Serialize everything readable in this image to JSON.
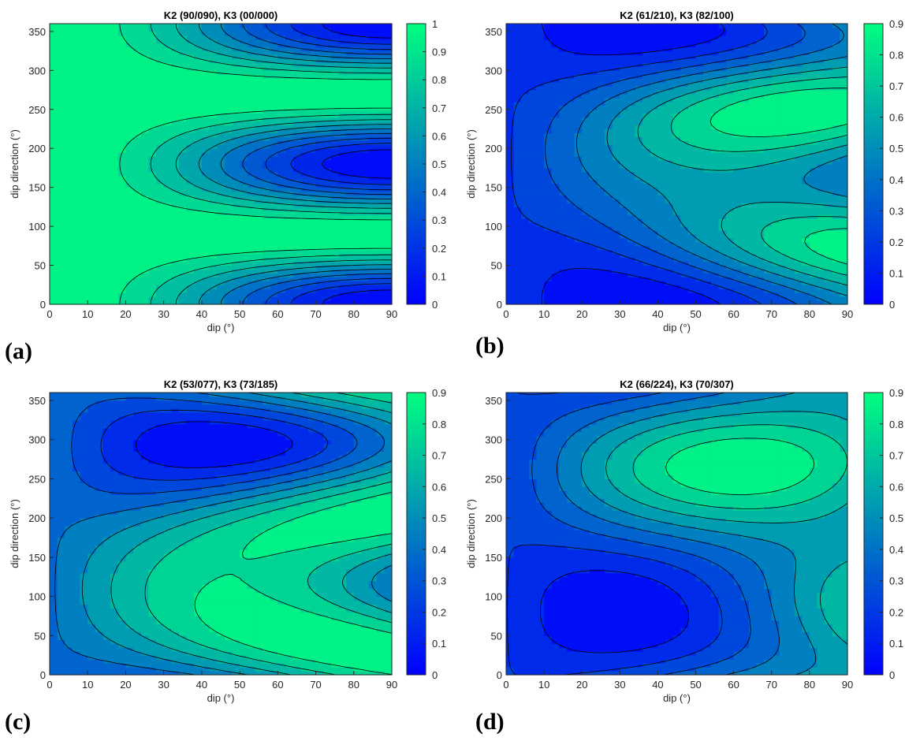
{
  "chart_data": [
    {
      "type": "heatmap",
      "subtype": "filled-contour",
      "panel_label": "(a)",
      "title": "K2 (90/090), K3 (00/000)",
      "xlabel": "dip (°)",
      "ylabel": "dip direction (°)",
      "xlim": [
        0,
        90
      ],
      "ylim": [
        0,
        360
      ],
      "xticks": [
        0,
        10,
        20,
        30,
        40,
        50,
        60,
        70,
        80,
        90
      ],
      "yticks": [
        0,
        50,
        100,
        150,
        200,
        250,
        300,
        350
      ],
      "colorbar": {
        "ticks": [
          0,
          0.1,
          0.2,
          0.3,
          0.4,
          0.5,
          0.6,
          0.7,
          0.8,
          0.9,
          1
        ],
        "lim": [
          0,
          1
        ]
      },
      "k2": {
        "dip": 90,
        "dir": 90
      },
      "k3": {
        "dip": 0,
        "dir": 0
      },
      "levels": [
        0.1,
        0.2,
        0.3,
        0.4,
        0.5,
        0.6,
        0.7,
        0.8,
        0.9
      ],
      "max_location": {
        "dip": 90,
        "dip_direction": 180
      }
    },
    {
      "type": "heatmap",
      "subtype": "filled-contour",
      "panel_label": "(b)",
      "title": "K2 (61/210), K3 (82/100)",
      "xlabel": "dip (°)",
      "ylabel": "dip direction (°)",
      "xlim": [
        0,
        90
      ],
      "ylim": [
        0,
        360
      ],
      "xticks": [
        0,
        10,
        20,
        30,
        40,
        50,
        60,
        70,
        80,
        90
      ],
      "yticks": [
        0,
        50,
        100,
        150,
        200,
        250,
        300,
        350
      ],
      "colorbar": {
        "ticks": [
          0,
          0.1,
          0.2,
          0.3,
          0.4,
          0.5,
          0.6,
          0.7,
          0.8,
          0.9
        ],
        "lim": [
          0,
          0.9
        ]
      },
      "k2": {
        "dip": 61,
        "dir": 210
      },
      "k3": {
        "dip": 82,
        "dir": 100
      },
      "levels": [
        0.1,
        0.2,
        0.3,
        0.4,
        0.5,
        0.6,
        0.7,
        0.8
      ],
      "max_location": {
        "dip": 25,
        "dip_direction": 0
      }
    },
    {
      "type": "heatmap",
      "subtype": "filled-contour",
      "panel_label": "(c)",
      "title": "K2 (53/077), K3 (73/185)",
      "xlabel": "dip (°)",
      "ylabel": "dip direction (°)",
      "xlim": [
        0,
        90
      ],
      "ylim": [
        0,
        360
      ],
      "xticks": [
        0,
        10,
        20,
        30,
        40,
        50,
        60,
        70,
        80,
        90
      ],
      "yticks": [
        0,
        50,
        100,
        150,
        200,
        250,
        300,
        350
      ],
      "colorbar": {
        "ticks": [
          0,
          0.1,
          0.2,
          0.3,
          0.4,
          0.5,
          0.6,
          0.7,
          0.8,
          0.9
        ],
        "lim": [
          0,
          0.9
        ]
      },
      "k2": {
        "dip": 53,
        "dir": 77
      },
      "k3": {
        "dip": 73,
        "dir": 185
      },
      "levels": [
        0.1,
        0.2,
        0.3,
        0.4,
        0.5,
        0.6,
        0.7,
        0.8
      ],
      "max_location": {
        "dip": 35,
        "dip_direction": 295
      }
    },
    {
      "type": "heatmap",
      "subtype": "filled-contour",
      "panel_label": "(d)",
      "title": "K2 (66/224), K3 (70/307)",
      "xlabel": "dip (°)",
      "ylabel": "dip direction (°)",
      "xlim": [
        0,
        90
      ],
      "ylim": [
        0,
        360
      ],
      "xticks": [
        0,
        10,
        20,
        30,
        40,
        50,
        60,
        70,
        80,
        90
      ],
      "yticks": [
        0,
        50,
        100,
        150,
        200,
        250,
        300,
        350
      ],
      "colorbar": {
        "ticks": [
          0,
          0.1,
          0.2,
          0.3,
          0.4,
          0.5,
          0.6,
          0.7,
          0.8,
          0.9
        ],
        "lim": [
          0,
          0.9
        ]
      },
      "k2": {
        "dip": 66,
        "dir": 224
      },
      "k3": {
        "dip": 70,
        "dir": 307
      },
      "levels": [
        0.1,
        0.2,
        0.3,
        0.4,
        0.5,
        0.6,
        0.7,
        0.8
      ],
      "max_location": {
        "dip": 20,
        "dip_direction": 80
      }
    }
  ],
  "colors": {
    "colormap_low": "#0000ff",
    "colormap_high": "#00ff80",
    "contour_line": "#000000",
    "axis": "#262626"
  }
}
